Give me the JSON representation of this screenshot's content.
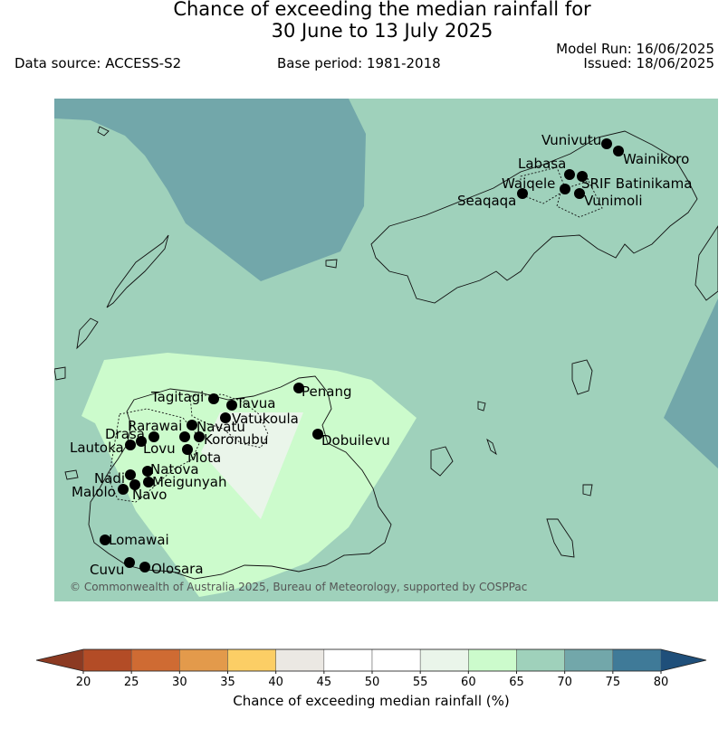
{
  "header": {
    "title_line1": "Chance of exceeding the median rainfall for",
    "title_line2": "30 June to 13 July 2025",
    "model_run": "Model Run: 16/06/2025",
    "issued": "Issued: 18/06/2025",
    "data_source": "Data source: ACCESS-S2",
    "base_period": "Base period: 1981-2018"
  },
  "map": {
    "copyright": "© Commonwealth of Australia 2025, Bureau of Meteorology, supported by COSPPac",
    "stations": [
      {
        "name": "Vunivutu"
      },
      {
        "name": "Wainikoro"
      },
      {
        "name": "Labasa"
      },
      {
        "name": "SRIF Batinikama"
      },
      {
        "name": "Waiqele"
      },
      {
        "name": "Seaqaqa"
      },
      {
        "name": "Vunimoli"
      },
      {
        "name": "Tagitagi"
      },
      {
        "name": "Tavua"
      },
      {
        "name": "Penang"
      },
      {
        "name": "Vatukoula"
      },
      {
        "name": "Rarawai"
      },
      {
        "name": "Navatu"
      },
      {
        "name": "Drasa"
      },
      {
        "name": "Koronubu"
      },
      {
        "name": "Lautoka"
      },
      {
        "name": "Lovu"
      },
      {
        "name": "Dobuilevu"
      },
      {
        "name": "Mota"
      },
      {
        "name": "Natova"
      },
      {
        "name": "Nadi"
      },
      {
        "name": "Meigunyah"
      },
      {
        "name": "Malolo"
      },
      {
        "name": "Navo"
      },
      {
        "name": "Lomawai"
      },
      {
        "name": "Cuvu"
      },
      {
        "name": "Olosara"
      }
    ]
  },
  "colorbar": {
    "title": "Chance of exceeding median rainfall (%)",
    "ticks": [
      "20",
      "25",
      "30",
      "35",
      "40",
      "45",
      "50",
      "55",
      "60",
      "65",
      "70",
      "75",
      "80"
    ],
    "colors": [
      "#b34c26",
      "#cf6b33",
      "#e39a4b",
      "#fcce65",
      "#ebe8e3",
      "#ffffff",
      "#ffffff",
      "#eaf5ea",
      "#ccfbcc",
      "#9fd1bb",
      "#72a7aa",
      "#3f7a98"
    ],
    "under_color": "#8c3a22",
    "over_color": "#1f4f7a"
  },
  "colors": {
    "c55_60": "#eaf5ea",
    "c60_65": "#ccfbcc",
    "c65_70": "#9fd1bb",
    "c70_75": "#72a7aa"
  }
}
